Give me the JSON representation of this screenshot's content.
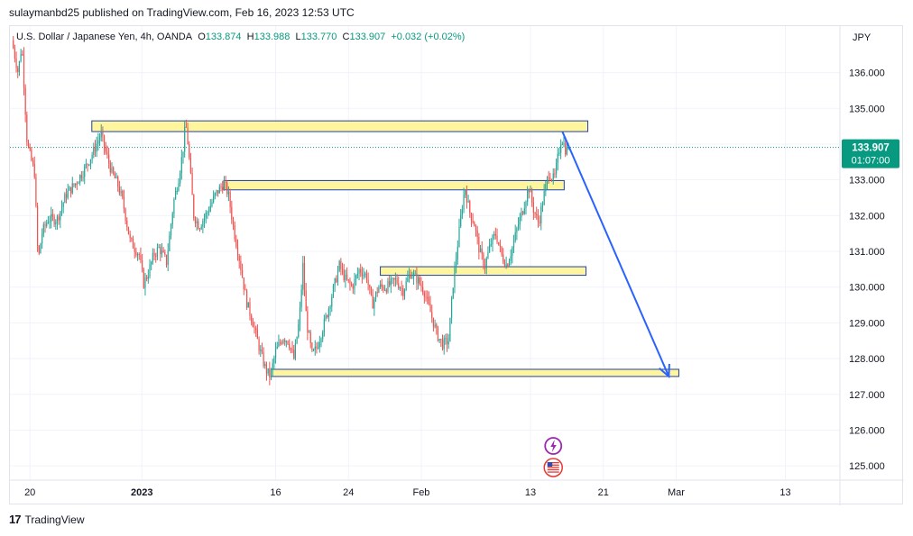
{
  "header": {
    "publish_text": "sulaymanbd25 published on TradingView.com, Feb 16, 2023 12:53 UTC"
  },
  "symbol": {
    "name": "U.S. Dollar / Japanese Yen, 4h, OANDA",
    "o_label": "O",
    "o_value": "133.874",
    "h_label": "H",
    "h_value": "133.988",
    "l_label": "L",
    "l_value": "133.770",
    "c_label": "C",
    "c_value": "133.907",
    "change": "+0.032 (+0.02%)"
  },
  "footer": {
    "brand": "TradingView"
  },
  "colors": {
    "up": "#26a69a",
    "down": "#ef5350",
    "zone_fill": "#fff59d",
    "zone_border": "#1e3fae",
    "arrow": "#2962ff",
    "last_price": "#089981"
  },
  "chart_data": {
    "type": "candlestick",
    "currency": "JPY",
    "ylim": [
      124.6,
      137.3
    ],
    "y_ticks": [
      "136.000",
      "135.000",
      "134.000",
      "133.000",
      "132.000",
      "131.000",
      "130.000",
      "129.000",
      "128.000",
      "127.000",
      "126.000",
      "125.000"
    ],
    "x_ticks": [
      {
        "label": "20",
        "day": 0,
        "bold": false
      },
      {
        "label": "2023",
        "day": 12.3,
        "bold": true
      },
      {
        "label": "16",
        "day": 27,
        "bold": false
      },
      {
        "label": "24",
        "day": 35,
        "bold": false
      },
      {
        "label": "Feb",
        "day": 43,
        "bold": false
      },
      {
        "label": "13",
        "day": 55,
        "bold": false
      },
      {
        "label": "21",
        "day": 63,
        "bold": false
      },
      {
        "label": "Mar",
        "day": 71,
        "bold": false
      },
      {
        "label": "13",
        "day": 83,
        "bold": false
      }
    ],
    "xlim_days": [
      -2.2,
      89
    ],
    "last_price": {
      "value": 133.907,
      "label": "133.907",
      "countdown": "01:07:00"
    },
    "zones": [
      {
        "day_start": 6.8,
        "day_end": 61.3,
        "top": 134.65,
        "bottom": 134.35
      },
      {
        "day_start": 21.3,
        "day_end": 58.7,
        "top": 132.98,
        "bottom": 132.72
      },
      {
        "day_start": 38.5,
        "day_end": 61.1,
        "top": 130.57,
        "bottom": 130.33
      },
      {
        "day_start": 26.5,
        "day_end": 71.3,
        "top": 127.7,
        "bottom": 127.5
      }
    ],
    "projection_arrow": {
      "from_day": 58.5,
      "from_price": 134.35,
      "to_day": 70.2,
      "to_price": 127.5
    },
    "path_points": [
      [
        -2.0,
        136.9
      ],
      [
        -1.3,
        136.0
      ],
      [
        -0.9,
        136.8
      ],
      [
        -0.3,
        134.0
      ],
      [
        0.5,
        133.2
      ],
      [
        0.9,
        130.7
      ],
      [
        1.3,
        131.5
      ],
      [
        2.0,
        131.9
      ],
      [
        3.0,
        131.9
      ],
      [
        4.0,
        132.6
      ],
      [
        5.0,
        132.9
      ],
      [
        6.0,
        133.3
      ],
      [
        7.0,
        133.8
      ],
      [
        7.8,
        134.3
      ],
      [
        8.3,
        133.8
      ],
      [
        9.0,
        133.2
      ],
      [
        9.6,
        132.9
      ],
      [
        10.2,
        132.4
      ],
      [
        11.0,
        131.3
      ],
      [
        12.0,
        130.9
      ],
      [
        12.5,
        130.1
      ],
      [
        13.0,
        130.4
      ],
      [
        13.6,
        130.9
      ],
      [
        14.2,
        131.1
      ],
      [
        15.0,
        130.7
      ],
      [
        15.8,
        132.4
      ],
      [
        16.3,
        133.0
      ],
      [
        16.8,
        133.8
      ],
      [
        17.1,
        134.6
      ],
      [
        17.4,
        133.9
      ],
      [
        18.0,
        132.0
      ],
      [
        18.6,
        131.7
      ],
      [
        19.5,
        132.1
      ],
      [
        20.4,
        132.6
      ],
      [
        21.3,
        132.9
      ],
      [
        21.8,
        132.6
      ],
      [
        22.4,
        131.6
      ],
      [
        23.0,
        130.8
      ],
      [
        23.8,
        129.6
      ],
      [
        24.5,
        129.0
      ],
      [
        25.3,
        128.2
      ],
      [
        25.9,
        127.7
      ],
      [
        26.4,
        127.5
      ],
      [
        27.0,
        128.2
      ],
      [
        27.8,
        128.6
      ],
      [
        28.4,
        128.5
      ],
      [
        29.0,
        128.0
      ],
      [
        29.6,
        129.1
      ],
      [
        30.0,
        130.6
      ],
      [
        30.4,
        129.0
      ],
      [
        31.0,
        128.1
      ],
      [
        31.5,
        128.3
      ],
      [
        32.0,
        128.7
      ],
      [
        32.7,
        129.3
      ],
      [
        33.4,
        130.0
      ],
      [
        34.0,
        130.6
      ],
      [
        34.7,
        130.2
      ],
      [
        35.4,
        130.0
      ],
      [
        36.2,
        130.5
      ],
      [
        37.0,
        130.3
      ],
      [
        37.6,
        129.5
      ],
      [
        38.3,
        130.0
      ],
      [
        39.2,
        130.0
      ],
      [
        40.2,
        130.2
      ],
      [
        41.0,
        129.9
      ],
      [
        41.8,
        130.4
      ],
      [
        42.6,
        130.2
      ],
      [
        43.3,
        129.9
      ],
      [
        44.0,
        129.3
      ],
      [
        44.7,
        128.7
      ],
      [
        45.3,
        128.4
      ],
      [
        46.0,
        128.5
      ],
      [
        46.5,
        130.1
      ],
      [
        47.0,
        131.2
      ],
      [
        47.4,
        132.1
      ],
      [
        47.8,
        132.8
      ],
      [
        48.3,
        132.1
      ],
      [
        48.8,
        131.8
      ],
      [
        49.4,
        131.0
      ],
      [
        50.0,
        130.6
      ],
      [
        50.6,
        131.2
      ],
      [
        51.2,
        131.5
      ],
      [
        51.8,
        130.9
      ],
      [
        52.4,
        130.6
      ],
      [
        53.0,
        131.1
      ],
      [
        53.6,
        131.7
      ],
      [
        54.2,
        132.2
      ],
      [
        54.8,
        132.8
      ],
      [
        55.4,
        132.1
      ],
      [
        55.9,
        131.8
      ],
      [
        56.5,
        132.6
      ],
      [
        57.0,
        133.2
      ],
      [
        57.6,
        133.0
      ],
      [
        58.0,
        133.6
      ],
      [
        58.4,
        134.2
      ],
      [
        58.9,
        133.8
      ],
      [
        59.3,
        133.91
      ]
    ]
  }
}
